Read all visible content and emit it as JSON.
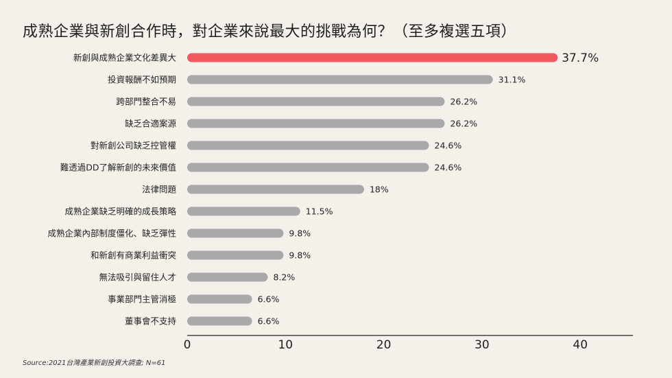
{
  "title": "成熟企業與新創合作時，對企業來說最大的挑戰為何？（至多複選五項）",
  "source": "Source:2021台灣產業新創投資大調查; N=61",
  "colors": {
    "background": "#f4f1ea",
    "highlight": "#f05a5f",
    "bar": "#a9a9a9",
    "axis": "#222222"
  },
  "chart_data": {
    "type": "bar",
    "orientation": "horizontal",
    "categories": [
      "新創與成熟企業文化差異大",
      "投資報酬不如預期",
      "跨部門整合不易",
      "缺乏合適案源",
      "對新創公司缺乏控管權",
      "難透過DD了解新創的未來價值",
      "法律問題",
      "成熟企業缺乏明確的成長策略",
      "成熟企業內部制度僵化、缺乏彈性",
      "和新創有商業利益衝突",
      "無法吸引與留住人才",
      "事業部門主管消極",
      "董事會不支持"
    ],
    "values": [
      37.7,
      31.1,
      26.2,
      26.2,
      24.6,
      24.6,
      18,
      11.5,
      9.8,
      9.8,
      8.2,
      6.6,
      6.6
    ],
    "value_labels": [
      "37.7%",
      "31.1%",
      "26.2%",
      "26.2%",
      "24.6%",
      "24.6%",
      "18%",
      "11.5%",
      "9.8%",
      "9.8%",
      "8.2%",
      "6.6%",
      "6.6%"
    ],
    "highlight_index": 0,
    "xlim": [
      0,
      45
    ],
    "xticks": [
      "0",
      "10",
      "20",
      "30",
      "40"
    ],
    "xtick_values": [
      0,
      10,
      20,
      30,
      40
    ],
    "grid": false,
    "legend": "none"
  }
}
